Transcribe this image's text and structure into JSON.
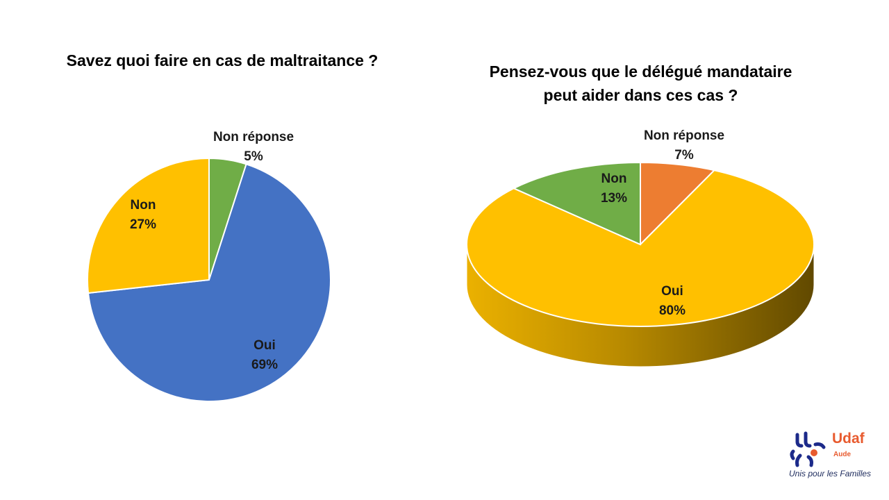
{
  "charts": [
    {
      "title_lines": [
        "Savez quoi faire en cas de maltraitance ?"
      ]
    },
    {
      "title_lines": [
        "Pensez-vous que le délégué mandataire",
        "peut aider dans ces cas ?"
      ]
    }
  ],
  "chart_data": [
    {
      "type": "pie",
      "title": "Savez quoi faire en cas de maltraitance ?",
      "legend": "none",
      "slices": [
        {
          "label": "Non réponse",
          "pct_label": "5%",
          "value": 5,
          "color": "#70ad47"
        },
        {
          "label": "Oui",
          "pct_label": "69%",
          "value": 69,
          "color": "#4472c4"
        },
        {
          "label": "Non",
          "pct_label": "27%",
          "value": 27,
          "color": "#ffc000"
        }
      ]
    },
    {
      "type": "pie",
      "style": "3d",
      "title": "Pensez-vous que le délégué mandataire peut aider dans ces cas ?",
      "legend": "none",
      "slices": [
        {
          "label": "Non réponse",
          "pct_label": "7%",
          "value": 7,
          "color": "#ed7d31"
        },
        {
          "label": "Oui",
          "pct_label": "80%",
          "value": 80,
          "color": "#ffc000"
        },
        {
          "label": "Non",
          "pct_label": "13%",
          "value": 13,
          "color": "#70ad47"
        }
      ]
    }
  ],
  "logo": {
    "brand": "Udaf",
    "subtitle": "Aude",
    "tagline": "Unis pour les Familles"
  }
}
